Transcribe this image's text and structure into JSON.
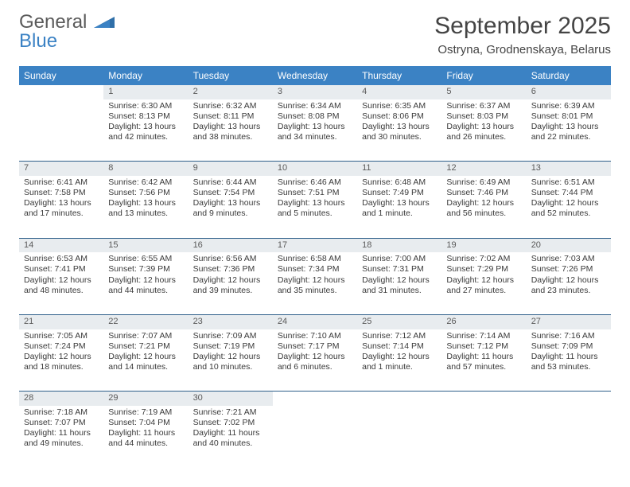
{
  "logo": {
    "word1": "General",
    "word2": "Blue"
  },
  "title": "September 2025",
  "location": "Ostryna, Grodnenskaya, Belarus",
  "colors": {
    "header_bg": "#3b82c4",
    "header_text": "#ffffff",
    "daynum_bg": "#e8ecef",
    "cell_border": "#2f5f8a",
    "logo_gray": "#5a5a5a",
    "logo_blue": "#3b82c4"
  },
  "weekdays": [
    "Sunday",
    "Monday",
    "Tuesday",
    "Wednesday",
    "Thursday",
    "Friday",
    "Saturday"
  ],
  "weeks": [
    {
      "nums": [
        "",
        "1",
        "2",
        "3",
        "4",
        "5",
        "6"
      ],
      "cells": [
        {
          "empty": true
        },
        {
          "sunrise": "Sunrise: 6:30 AM",
          "sunset": "Sunset: 8:13 PM",
          "daylight": "Daylight: 13 hours and 42 minutes."
        },
        {
          "sunrise": "Sunrise: 6:32 AM",
          "sunset": "Sunset: 8:11 PM",
          "daylight": "Daylight: 13 hours and 38 minutes."
        },
        {
          "sunrise": "Sunrise: 6:34 AM",
          "sunset": "Sunset: 8:08 PM",
          "daylight": "Daylight: 13 hours and 34 minutes."
        },
        {
          "sunrise": "Sunrise: 6:35 AM",
          "sunset": "Sunset: 8:06 PM",
          "daylight": "Daylight: 13 hours and 30 minutes."
        },
        {
          "sunrise": "Sunrise: 6:37 AM",
          "sunset": "Sunset: 8:03 PM",
          "daylight": "Daylight: 13 hours and 26 minutes."
        },
        {
          "sunrise": "Sunrise: 6:39 AM",
          "sunset": "Sunset: 8:01 PM",
          "daylight": "Daylight: 13 hours and 22 minutes."
        }
      ]
    },
    {
      "nums": [
        "7",
        "8",
        "9",
        "10",
        "11",
        "12",
        "13"
      ],
      "cells": [
        {
          "sunrise": "Sunrise: 6:41 AM",
          "sunset": "Sunset: 7:58 PM",
          "daylight": "Daylight: 13 hours and 17 minutes."
        },
        {
          "sunrise": "Sunrise: 6:42 AM",
          "sunset": "Sunset: 7:56 PM",
          "daylight": "Daylight: 13 hours and 13 minutes."
        },
        {
          "sunrise": "Sunrise: 6:44 AM",
          "sunset": "Sunset: 7:54 PM",
          "daylight": "Daylight: 13 hours and 9 minutes."
        },
        {
          "sunrise": "Sunrise: 6:46 AM",
          "sunset": "Sunset: 7:51 PM",
          "daylight": "Daylight: 13 hours and 5 minutes."
        },
        {
          "sunrise": "Sunrise: 6:48 AM",
          "sunset": "Sunset: 7:49 PM",
          "daylight": "Daylight: 13 hours and 1 minute."
        },
        {
          "sunrise": "Sunrise: 6:49 AM",
          "sunset": "Sunset: 7:46 PM",
          "daylight": "Daylight: 12 hours and 56 minutes."
        },
        {
          "sunrise": "Sunrise: 6:51 AM",
          "sunset": "Sunset: 7:44 PM",
          "daylight": "Daylight: 12 hours and 52 minutes."
        }
      ]
    },
    {
      "nums": [
        "14",
        "15",
        "16",
        "17",
        "18",
        "19",
        "20"
      ],
      "cells": [
        {
          "sunrise": "Sunrise: 6:53 AM",
          "sunset": "Sunset: 7:41 PM",
          "daylight": "Daylight: 12 hours and 48 minutes."
        },
        {
          "sunrise": "Sunrise: 6:55 AM",
          "sunset": "Sunset: 7:39 PM",
          "daylight": "Daylight: 12 hours and 44 minutes."
        },
        {
          "sunrise": "Sunrise: 6:56 AM",
          "sunset": "Sunset: 7:36 PM",
          "daylight": "Daylight: 12 hours and 39 minutes."
        },
        {
          "sunrise": "Sunrise: 6:58 AM",
          "sunset": "Sunset: 7:34 PM",
          "daylight": "Daylight: 12 hours and 35 minutes."
        },
        {
          "sunrise": "Sunrise: 7:00 AM",
          "sunset": "Sunset: 7:31 PM",
          "daylight": "Daylight: 12 hours and 31 minutes."
        },
        {
          "sunrise": "Sunrise: 7:02 AM",
          "sunset": "Sunset: 7:29 PM",
          "daylight": "Daylight: 12 hours and 27 minutes."
        },
        {
          "sunrise": "Sunrise: 7:03 AM",
          "sunset": "Sunset: 7:26 PM",
          "daylight": "Daylight: 12 hours and 23 minutes."
        }
      ]
    },
    {
      "nums": [
        "21",
        "22",
        "23",
        "24",
        "25",
        "26",
        "27"
      ],
      "cells": [
        {
          "sunrise": "Sunrise: 7:05 AM",
          "sunset": "Sunset: 7:24 PM",
          "daylight": "Daylight: 12 hours and 18 minutes."
        },
        {
          "sunrise": "Sunrise: 7:07 AM",
          "sunset": "Sunset: 7:21 PM",
          "daylight": "Daylight: 12 hours and 14 minutes."
        },
        {
          "sunrise": "Sunrise: 7:09 AM",
          "sunset": "Sunset: 7:19 PM",
          "daylight": "Daylight: 12 hours and 10 minutes."
        },
        {
          "sunrise": "Sunrise: 7:10 AM",
          "sunset": "Sunset: 7:17 PM",
          "daylight": "Daylight: 12 hours and 6 minutes."
        },
        {
          "sunrise": "Sunrise: 7:12 AM",
          "sunset": "Sunset: 7:14 PM",
          "daylight": "Daylight: 12 hours and 1 minute."
        },
        {
          "sunrise": "Sunrise: 7:14 AM",
          "sunset": "Sunset: 7:12 PM",
          "daylight": "Daylight: 11 hours and 57 minutes."
        },
        {
          "sunrise": "Sunrise: 7:16 AM",
          "sunset": "Sunset: 7:09 PM",
          "daylight": "Daylight: 11 hours and 53 minutes."
        }
      ]
    },
    {
      "nums": [
        "28",
        "29",
        "30",
        "",
        "",
        "",
        ""
      ],
      "cells": [
        {
          "sunrise": "Sunrise: 7:18 AM",
          "sunset": "Sunset: 7:07 PM",
          "daylight": "Daylight: 11 hours and 49 minutes."
        },
        {
          "sunrise": "Sunrise: 7:19 AM",
          "sunset": "Sunset: 7:04 PM",
          "daylight": "Daylight: 11 hours and 44 minutes."
        },
        {
          "sunrise": "Sunrise: 7:21 AM",
          "sunset": "Sunset: 7:02 PM",
          "daylight": "Daylight: 11 hours and 40 minutes."
        },
        {
          "empty": true
        },
        {
          "empty": true
        },
        {
          "empty": true
        },
        {
          "empty": true
        }
      ]
    }
  ]
}
